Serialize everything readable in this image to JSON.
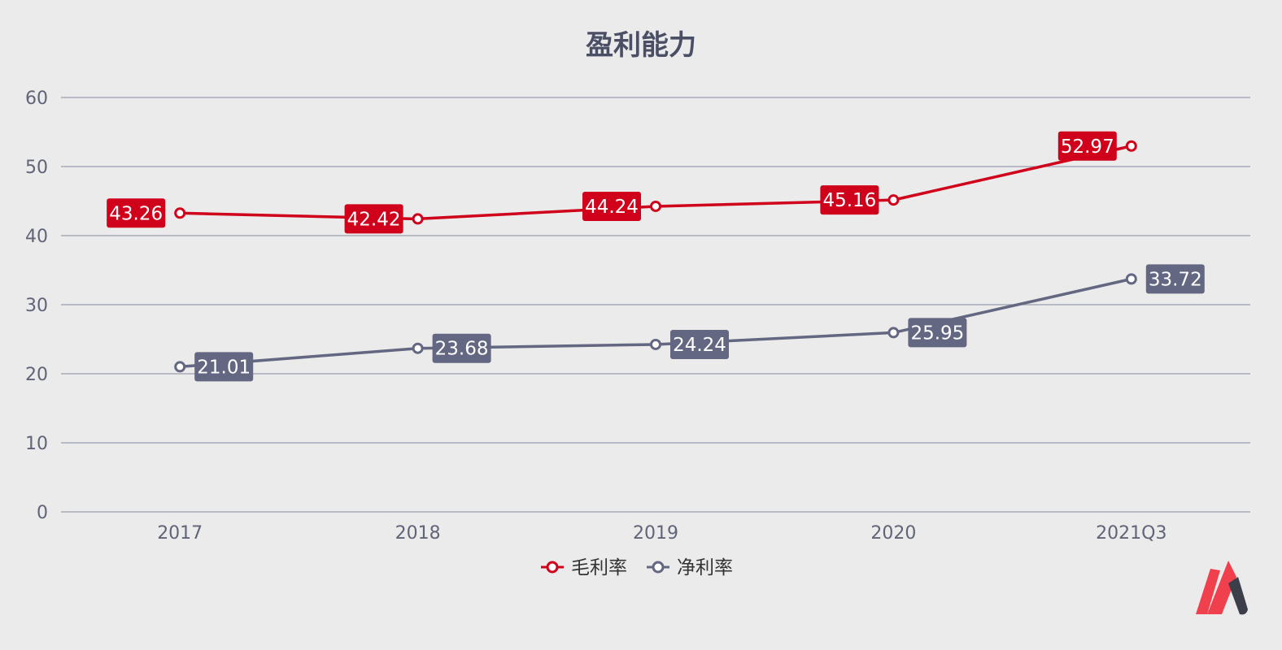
{
  "chart_data": {
    "type": "line",
    "title": "盈利能力",
    "categories": [
      "2017",
      "2018",
      "2019",
      "2020",
      "2021Q3"
    ],
    "ylim": [
      0,
      60
    ],
    "yticks": [
      0,
      10,
      20,
      30,
      40,
      50,
      60
    ],
    "grid": true,
    "legend_position": "bottom",
    "series": [
      {
        "name": "毛利率",
        "values": [
          43.26,
          42.42,
          44.24,
          45.16,
          52.97
        ],
        "color": "#d0021b",
        "label_side": "left"
      },
      {
        "name": "净利率",
        "values": [
          21.01,
          23.68,
          24.24,
          25.95,
          33.72
        ],
        "color": "#636781",
        "label_side": "right"
      }
    ]
  },
  "colors": {
    "background": "#ebebeb",
    "grid": "#9a9eb0",
    "axis_text": "#606478"
  },
  "logo": {
    "icon": "brand-logo-icon",
    "colors": [
      "#f0404e",
      "#3c3f4a"
    ]
  }
}
